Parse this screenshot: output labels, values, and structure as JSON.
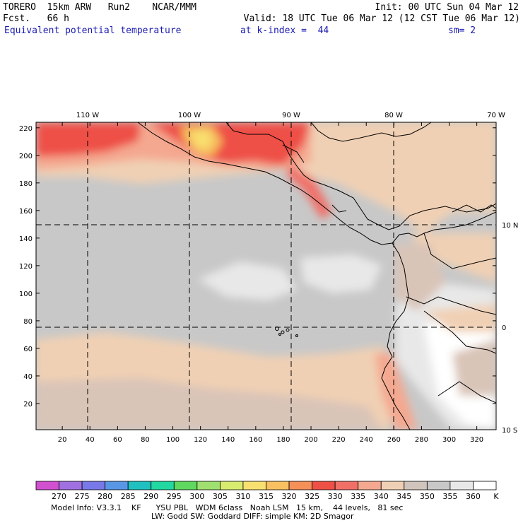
{
  "header": {
    "model_name": "TORERO  15km ARW   Run2    NCAR/MMM",
    "init": "Init: 00 UTC Sun 04 Mar 12",
    "forecast": "Fcst.   66 h",
    "valid": "Valid: 18 UTC Tue 06 Mar 12 (12 CST Tue 06 Mar 12)",
    "field_name": "Equivalent potential temperature",
    "level": "at k-index =  44",
    "smoothing": "sm= 2"
  },
  "map": {
    "top_lon_labels": [
      "110 W",
      "100 W",
      "90 W",
      "80 W",
      "70 W"
    ],
    "right_lat_labels": [
      "10 N",
      "0",
      "10 S"
    ],
    "y_ticks": [
      220,
      200,
      180,
      160,
      140,
      120,
      100,
      80,
      60,
      40,
      20
    ],
    "x_ticks": [
      20,
      40,
      60,
      80,
      100,
      120,
      140,
      160,
      180,
      200,
      220,
      240,
      260,
      280,
      300,
      320
    ],
    "grid_x_range": [
      1,
      334
    ],
    "grid_y_range": [
      1,
      224
    ]
  },
  "colorbar": {
    "labels": [
      "270",
      "275",
      "280",
      "285",
      "290",
      "295",
      "300",
      "305",
      "310",
      "315",
      "320",
      "325",
      "330",
      "335",
      "340",
      "345",
      "350",
      "355",
      "360"
    ],
    "unit": "K",
    "colors": [
      "#d050d0",
      "#a070e0",
      "#7878e8",
      "#5a96e6",
      "#20c0c0",
      "#20d8a0",
      "#60d860",
      "#a0e070",
      "#d8ec70",
      "#f8e070",
      "#f8c060",
      "#f49058",
      "#ee5046",
      "#f07068",
      "#f4a890",
      "#f0d0b4",
      "#d0c4bc",
      "#c8c8c8",
      "#e8e8e8",
      "#ffffff"
    ]
  },
  "footer": {
    "line1": "Model Info: V3.3.1    KF      YSU PBL   WDM 6class   Noah LSM   15 km,    44 levels,   81 sec",
    "line2": "LW: Godd SW: Goddard DIFF: simple KM: 2D Smagor"
  }
}
